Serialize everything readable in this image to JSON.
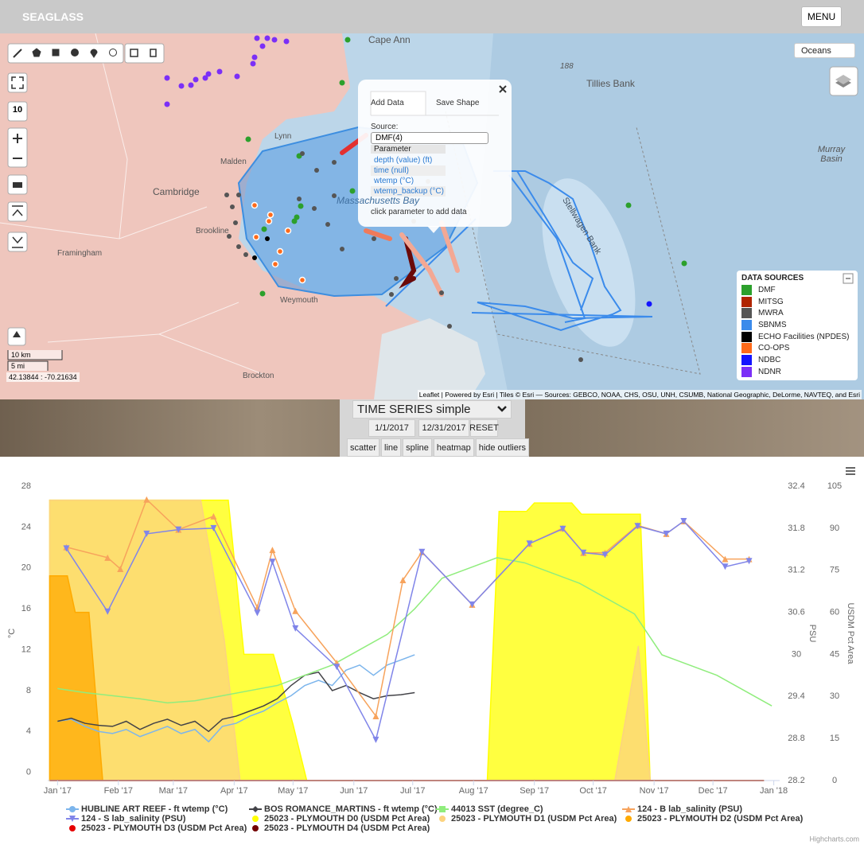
{
  "header": {
    "title": "SEAGLASS",
    "menu": "MENU"
  },
  "map": {
    "basemap": "Oceans",
    "zoom": "10",
    "north": "N",
    "labels": [
      "Cape Ann",
      "188",
      "Tillies Bank",
      "Murray Basin",
      "Cambridge",
      "Lynn",
      "Malden",
      "Brookline",
      "Framingham",
      "Weymouth",
      "Brockton",
      "Massachusetts Bay",
      "Stellwagen Bank"
    ],
    "popup": {
      "tabs": [
        "Add Data",
        "Save Shape"
      ],
      "source_label": "Source:",
      "source": "DMF(4)",
      "parameter_header": "Parameter",
      "parameters": [
        "depth (value) (ft)",
        "time (null)",
        "wtemp (°C)",
        "wtemp_backup (°C)"
      ],
      "hint": "click parameter to add data"
    },
    "legend": {
      "title": "DATA SOURCES",
      "items": [
        {
          "name": "DMF",
          "color": "#2ca02c"
        },
        {
          "name": "MITSG",
          "color": "#b02400"
        },
        {
          "name": "MWRA",
          "color": "#555555"
        },
        {
          "name": "SBNMS",
          "color": "#3b8beb"
        },
        {
          "name": "ECHO Facilities (NPDES)",
          "color": "#000000"
        },
        {
          "name": "CO-OPS",
          "color": "#ff6a1a"
        },
        {
          "name": "NDBC",
          "color": "#1414ff"
        },
        {
          "name": "NDNR",
          "color": "#7b2ff7"
        }
      ]
    },
    "scale": [
      "10 km",
      "5 mi"
    ],
    "coordinates": "42.13844 : -70.21634",
    "attribution": "Leaflet | Powered by Esri | Tiles © Esri — Sources: GEBCO, NOAA, CHS, OSU, UNH, CSUMB, National Geographic, DeLorme, NAVTEQ, and Esri"
  },
  "controls": {
    "select": "TIME SERIES simple",
    "start": "1/1/2017",
    "end": "12/31/2017",
    "reset": "RESET",
    "modes": [
      "scatter",
      "line",
      "spline",
      "heatmap",
      "hide outliers"
    ]
  },
  "chart_data": {
    "type": "line",
    "xlim": [
      -5,
      368
    ],
    "xticks": [
      {
        "value": 0,
        "label": "Jan '17"
      },
      {
        "value": 31,
        "label": "Feb '17"
      },
      {
        "value": 59,
        "label": "Mar '17"
      },
      {
        "value": 90,
        "label": "Apr '17"
      },
      {
        "value": 120,
        "label": "May '17"
      },
      {
        "value": 151,
        "label": "Jun '17"
      },
      {
        "value": 181,
        "label": "Jul '17"
      },
      {
        "value": 212,
        "label": "Aug '17"
      },
      {
        "value": 243,
        "label": "Sep '17"
      },
      {
        "value": 273,
        "label": "Oct '17"
      },
      {
        "value": 304,
        "label": "Nov '17"
      },
      {
        "value": 334,
        "label": "Dec '17"
      },
      {
        "value": 365,
        "label": "Jan '18"
      }
    ],
    "ylabel": "°C",
    "ylim": [
      -0.8,
      28
    ],
    "yticks": [
      0,
      4,
      8,
      12,
      16,
      20,
      24,
      28
    ],
    "y2label": "PSU",
    "y2lim": [
      28.2,
      32.4
    ],
    "y2ticks": [
      28.2,
      28.8,
      29.4,
      30,
      30.6,
      31.2,
      31.8,
      32.4
    ],
    "y3label": "USDM Pct Area",
    "y3lim": [
      0,
      105
    ],
    "y3ticks": [
      0,
      15,
      30,
      45,
      60,
      75,
      90,
      105
    ],
    "series": [
      {
        "name": "HUBLINE ART REEF - ft wtemp (°C)",
        "type": "line",
        "color": "#7cb5ec",
        "axis": "y",
        "marker": "circle",
        "x": [
          0,
          7,
          14,
          21,
          28,
          35,
          42,
          49,
          56,
          63,
          70,
          77,
          84,
          91,
          98,
          105,
          112,
          119,
          126,
          133,
          140,
          147,
          154,
          161,
          168,
          175,
          182
        ],
        "values": [
          5,
          5.2,
          4.5,
          4,
          3.8,
          4.2,
          3.5,
          4,
          4.5,
          3.8,
          4.2,
          3,
          4.5,
          4.8,
          5.5,
          6,
          6.8,
          7.5,
          8.5,
          9,
          8.5,
          10,
          10.5,
          9.5,
          10.5,
          11,
          11.5
        ]
      },
      {
        "name": "BOS ROMANCE_MARTINS - ft wtemp (°C)",
        "type": "line",
        "color": "#434348",
        "axis": "y",
        "marker": "diamond",
        "x": [
          0,
          7,
          14,
          21,
          28,
          35,
          42,
          49,
          56,
          63,
          70,
          77,
          84,
          91,
          98,
          105,
          112,
          119,
          126,
          133,
          140,
          147,
          154,
          161,
          168,
          175,
          182
        ],
        "values": [
          5,
          5.3,
          4.8,
          4.6,
          4.5,
          5,
          4.2,
          4.8,
          5.2,
          4.6,
          5,
          4,
          5.2,
          5.5,
          6,
          6.5,
          7.2,
          8.5,
          9.5,
          9.8,
          8,
          8.5,
          7.8,
          7.2,
          7.5,
          7.6,
          7.8
        ]
      },
      {
        "name": "44013 SST (degree_C)",
        "type": "line",
        "color": "#90ed7d",
        "axis": "y",
        "marker": "square",
        "x": [
          0,
          14,
          28,
          42,
          56,
          70,
          84,
          98,
          112,
          126,
          140,
          154,
          168,
          182,
          196,
          210,
          224,
          238,
          252,
          266,
          280,
          294,
          308,
          322,
          336,
          350,
          364
        ],
        "values": [
          8.2,
          7.8,
          7.5,
          7.2,
          6.8,
          7,
          7.5,
          8,
          8.5,
          9.5,
          10.5,
          12,
          13.5,
          16,
          19,
          20,
          21,
          20.5,
          19.5,
          18.5,
          17,
          15.5,
          11.5,
          10.5,
          9.5,
          8,
          6.5
        ]
      },
      {
        "name": "124 - B lab_salinity (PSU)",
        "type": "line",
        "color": "#f7a35c",
        "axis": "y2",
        "marker": "triangle",
        "markers": true,
        "x": [
          4.5,
          25.5,
          32,
          45.4,
          61.6,
          79.5,
          101.8,
          109.5,
          121.2,
          142.3,
          162.2,
          176,
          185.7,
          211.3,
          240.5,
          257.5,
          268,
          279,
          295.6,
          310.2,
          319.1,
          340.2,
          352.4
        ],
        "values": [
          31.53,
          31.38,
          31.22,
          32.21,
          31.78,
          31.97,
          30.67,
          31.49,
          30.62,
          29.88,
          29.12,
          31.06,
          31.46,
          30.71,
          31.58,
          31.8,
          31.45,
          31.45,
          31.84,
          31.72,
          31.9,
          31.36,
          31.36
        ]
      },
      {
        "name": "124 - S lab_salinity (PSU)",
        "type": "line",
        "color": "#8085e9",
        "axis": "y2",
        "marker": "triangle-down",
        "markers": true,
        "x": [
          4.5,
          25.5,
          45.4,
          61.6,
          79.5,
          101.8,
          109.5,
          121.2,
          142.3,
          162.2,
          185.7,
          211.3,
          240.5,
          257.5,
          268,
          279,
          295.6,
          310.2,
          319.1,
          340.2,
          352.4
        ],
        "values": [
          31.51,
          30.61,
          31.72,
          31.78,
          31.8,
          30.59,
          31.32,
          30.37,
          29.82,
          28.78,
          31.46,
          30.71,
          31.58,
          31.79,
          31.45,
          31.42,
          31.83,
          31.72,
          31.9,
          31.25,
          31.33
        ]
      },
      {
        "name": "25023 - PLYMOUTH D0 (USDM Pct Area)",
        "type": "area",
        "color": "#ffff00",
        "axis": "y3",
        "marker": "circle",
        "x": [
          -4,
          87,
          95,
          110,
          120,
          127,
          219,
          225,
          239,
          243,
          262,
          267,
          297,
          302,
          360
        ],
        "values": [
          100,
          100,
          45,
          45,
          20,
          0,
          0,
          96,
          96,
          99,
          99,
          95,
          95,
          0,
          0
        ]
      },
      {
        "name": "25023 - PLYMOUTH D1 (USDM Pct Area)",
        "type": "area",
        "color": "#fcd37f",
        "axis": "y3",
        "marker": "circle",
        "x": [
          -4,
          73,
          78,
          85,
          93,
          284,
          296,
          302,
          360
        ],
        "values": [
          100,
          100,
          80,
          50,
          0,
          0,
          48,
          0,
          0
        ]
      },
      {
        "name": "25023 - PLYMOUTH D2 (USDM Pct Area)",
        "type": "area",
        "color": "#ffaa00",
        "axis": "y3",
        "marker": "circle",
        "x": [
          -4,
          5,
          9,
          16,
          23,
          360
        ],
        "values": [
          73,
          73,
          60,
          60,
          0,
          0
        ]
      },
      {
        "name": "25023 - PLYMOUTH D3 (USDM Pct Area)",
        "type": "area",
        "color": "#e60000",
        "axis": "y3",
        "marker": "circle",
        "x": [
          -4,
          360
        ],
        "values": [
          0,
          0
        ]
      },
      {
        "name": "25023 - PLYMOUTH D4 (USDM Pct Area)",
        "type": "area",
        "color": "#730000",
        "axis": "y3",
        "marker": "circle",
        "x": [
          -4,
          360
        ],
        "values": [
          0,
          0
        ]
      }
    ]
  },
  "credit": "Highcharts.com"
}
